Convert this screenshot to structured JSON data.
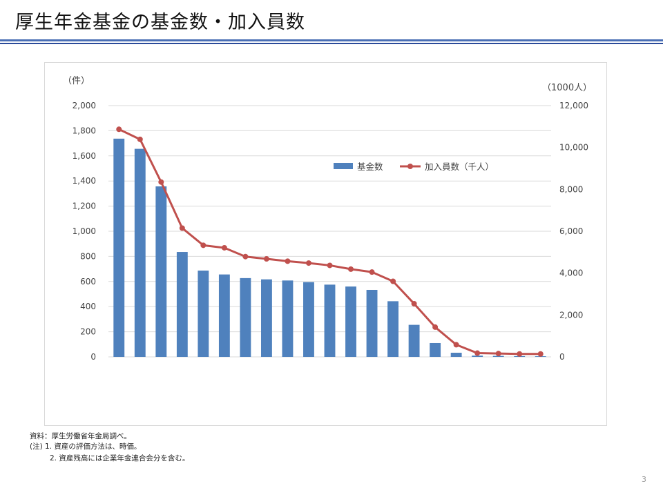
{
  "slide": {
    "title": "厚生年金基金の基金数・加入員数",
    "page_number": "3",
    "notes": {
      "source": "資料：厚生労働省年金局調べ。",
      "note1": "(注) 1. 資産の評価方法は、時価。",
      "note2": "2. 資産残高には企業年金連合会分を含む。"
    }
  },
  "colors": {
    "bar": "#4f81bd",
    "line": "#c0504d",
    "grid": "#d9d9d9",
    "rule": "#2a4b9a"
  },
  "chart_data": {
    "type": "bar+line",
    "left_axis": {
      "unit_label": "（件）",
      "ylim": [
        0,
        2000
      ],
      "ticks": [
        "0",
        "200",
        "400",
        "600",
        "800",
        "1,000",
        "1,200",
        "1,400",
        "1,600",
        "1,800",
        "2,000"
      ]
    },
    "right_axis": {
      "unit_label": "（1000人）",
      "ylim": [
        0,
        12000
      ],
      "ticks": [
        "0",
        "2,000",
        "4,000",
        "6,000",
        "8,000",
        "10,000",
        "12,000"
      ]
    },
    "grid": true,
    "legend_position": "top-right",
    "series": [
      {
        "name": "基金数",
        "type": "bar",
        "axis": "left",
        "values": [
          1737,
          1656,
          1357,
          835,
          687,
          656,
          627,
          617,
          608,
          595,
          575,
          560,
          533,
          443,
          255,
          110,
          33,
          10,
          8,
          6,
          5
        ]
      },
      {
        "name": "加入員数（千人）",
        "type": "line",
        "axis": "right",
        "values": [
          10870,
          10390,
          8350,
          6150,
          5330,
          5210,
          4790,
          4680,
          4570,
          4480,
          4370,
          4190,
          4050,
          3610,
          2540,
          1420,
          580,
          180,
          160,
          140,
          140
        ]
      }
    ]
  }
}
